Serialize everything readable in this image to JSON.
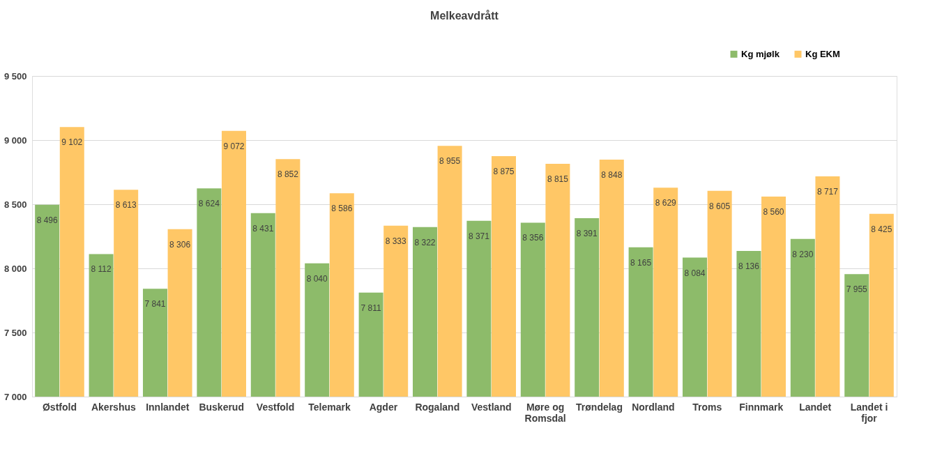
{
  "chart_data": {
    "type": "bar",
    "title": "Melkeavdrått",
    "categories": [
      "Østfold",
      "Akershus",
      "Innlandet",
      "Buskerud",
      "Vestfold",
      "Telemark",
      "Agder",
      "Rogaland",
      "Vestland",
      "Møre og Romsdal",
      "Trøndelag",
      "Nordland",
      "Troms",
      "Finnmark",
      "Landet",
      "Landet i fjor"
    ],
    "series": [
      {
        "name": "Kg mjølk",
        "color": "#8dbb6a",
        "values": [
          8496,
          8112,
          7841,
          8624,
          8431,
          8040,
          7811,
          8322,
          8371,
          8356,
          8391,
          8165,
          8084,
          8136,
          8230,
          7955
        ]
      },
      {
        "name": "Kg EKM",
        "color": "#ffc766",
        "values": [
          9102,
          8613,
          8306,
          9072,
          8852,
          8586,
          8333,
          8955,
          8875,
          8815,
          8848,
          8629,
          8605,
          8560,
          8717,
          8425
        ]
      }
    ],
    "ylim": [
      7000,
      9500
    ],
    "yticks": [
      7000,
      7500,
      8000,
      8500,
      9000,
      9500
    ],
    "grid": "y",
    "legend": "top right",
    "data_labels": true
  }
}
